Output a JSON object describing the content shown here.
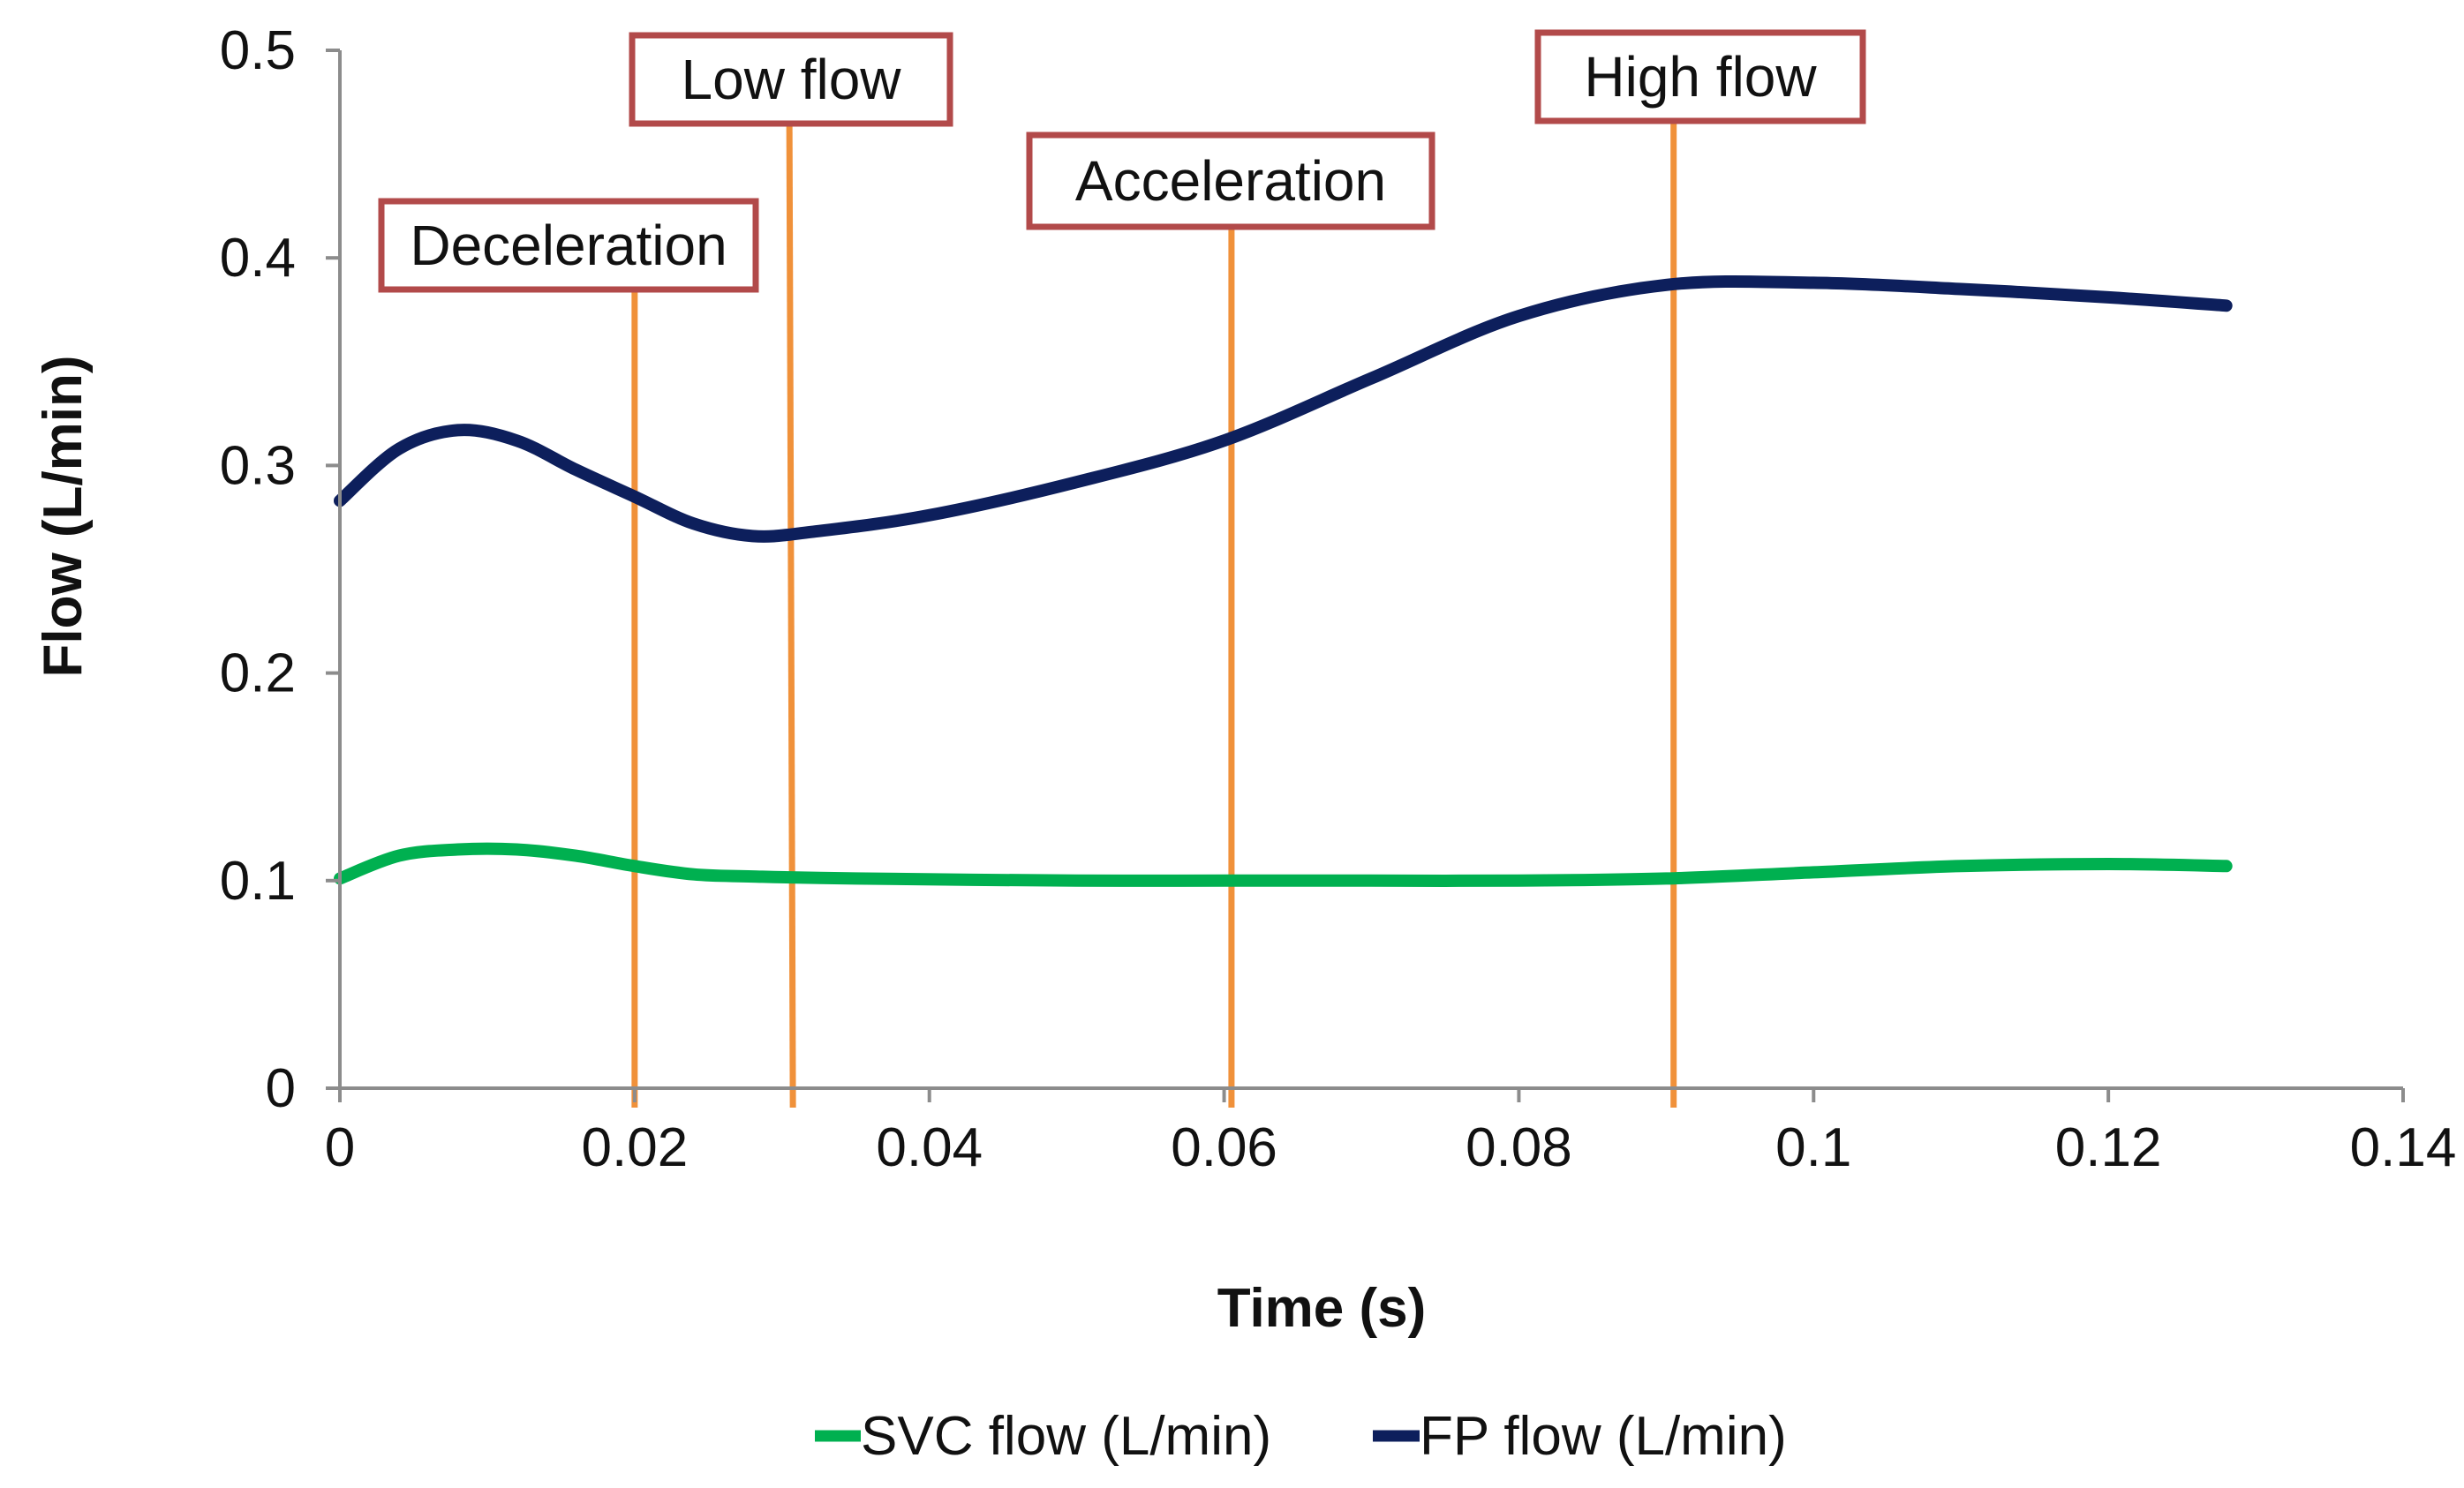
{
  "chart_data": {
    "type": "line",
    "title": "",
    "xlabel": "Time (s)",
    "ylabel": "Flow (L/min)",
    "xlim": [
      0,
      0.14
    ],
    "ylim": [
      0,
      0.5
    ],
    "x_ticks": [
      0,
      0.02,
      0.04,
      0.06,
      0.08,
      0.1,
      0.12,
      0.14
    ],
    "x_tick_labels": [
      "0",
      "0.02",
      "0.04",
      "0.06",
      "0.08",
      "0.1",
      "0.12",
      "0.14"
    ],
    "y_ticks": [
      0,
      0.1,
      0.2,
      0.3,
      0.4,
      0.5
    ],
    "y_tick_labels": [
      "0",
      "0.1",
      "0.2",
      "0.3",
      "0.4",
      "0.5"
    ],
    "grid": false,
    "legend_position": "bottom",
    "series": [
      {
        "name": "SVC flow (L/min)",
        "color": "#00b050",
        "x": [
          0,
          0.004,
          0.008,
          0.012,
          0.016,
          0.02,
          0.024,
          0.028,
          0.035,
          0.05,
          0.06,
          0.07,
          0.08,
          0.09,
          0.1,
          0.11,
          0.12,
          0.128
        ],
        "values": [
          0.101,
          0.112,
          0.115,
          0.115,
          0.112,
          0.107,
          0.103,
          0.102,
          0.101,
          0.1,
          0.1,
          0.1,
          0.1,
          0.101,
          0.104,
          0.107,
          0.108,
          0.107
        ]
      },
      {
        "name": "FP flow (L/min)",
        "color": "#0d1f5c",
        "x": [
          0,
          0.004,
          0.008,
          0.012,
          0.016,
          0.02,
          0.024,
          0.028,
          0.032,
          0.04,
          0.05,
          0.06,
          0.07,
          0.08,
          0.09,
          0.1,
          0.11,
          0.12,
          0.128
        ],
        "values": [
          0.283,
          0.308,
          0.317,
          0.312,
          0.298,
          0.285,
          0.272,
          0.266,
          0.268,
          0.276,
          0.292,
          0.312,
          0.342,
          0.372,
          0.387,
          0.388,
          0.385,
          0.381,
          0.377
        ]
      }
    ],
    "annotations": [
      {
        "label": "Deceleration",
        "x": 0.02,
        "color": "#f0913a",
        "box_color": "#b24a4a"
      },
      {
        "label": "Low flow",
        "x": 0.0305,
        "color": "#f0913a",
        "box_color": "#b24a4a"
      },
      {
        "label": "Acceleration",
        "x": 0.0605,
        "color": "#f0913a",
        "box_color": "#b24a4a"
      },
      {
        "label": "High flow",
        "x": 0.0905,
        "color": "#f0913a",
        "box_color": "#b24a4a"
      }
    ],
    "axis_color": "#8c8c8c"
  }
}
